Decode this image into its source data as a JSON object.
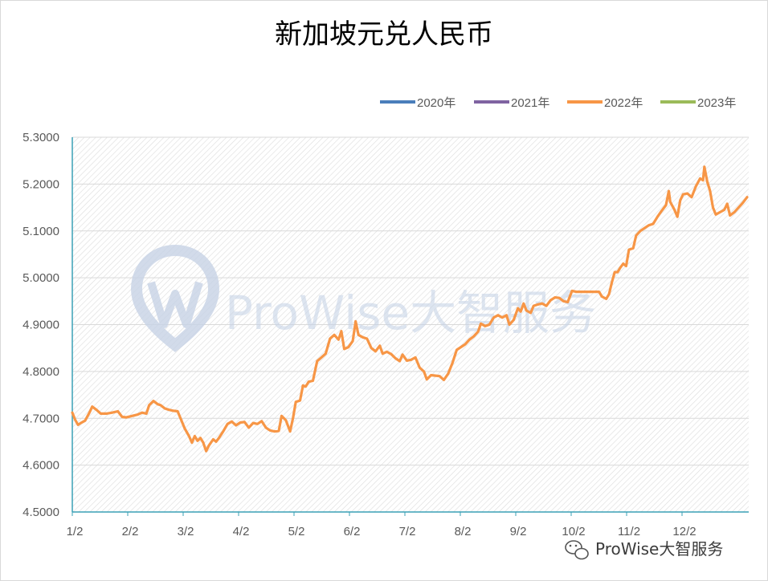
{
  "chart_data": {
    "type": "line",
    "title": "新加坡元兑人民币",
    "xlabel": "",
    "ylabel": "",
    "ylim": [
      4.5,
      5.3
    ],
    "yticks": [
      "4.5000",
      "4.6000",
      "4.7000",
      "4.8000",
      "4.9000",
      "5.0000",
      "5.1000",
      "5.2000",
      "5.3000"
    ],
    "ytick_values": [
      4.5,
      4.6,
      4.7,
      4.8,
      4.9,
      5.0,
      5.1,
      5.2,
      5.3
    ],
    "xticks": [
      "1/2",
      "2/2",
      "3/2",
      "4/2",
      "5/2",
      "6/2",
      "7/2",
      "8/2",
      "9/2",
      "10/2",
      "11/2",
      "12/2"
    ],
    "legend_position": "top-right",
    "grid": true,
    "series": [
      {
        "name": "2020年",
        "color": "#4a7ebb",
        "values": []
      },
      {
        "name": "2021年",
        "color": "#7f63a1",
        "values": []
      },
      {
        "name": "2022年",
        "color": "#f79646",
        "values": [
          [
            0.0,
            4.712
          ],
          [
            1.0,
            4.697
          ],
          [
            2.0,
            4.686
          ],
          [
            3.0,
            4.69
          ],
          [
            4.5,
            4.695
          ],
          [
            6.0,
            4.712
          ],
          [
            7.0,
            4.725
          ],
          [
            8.5,
            4.718
          ],
          [
            10.0,
            4.71
          ],
          [
            12.0,
            4.71
          ],
          [
            14.0,
            4.712
          ],
          [
            16.0,
            4.715
          ],
          [
            17.5,
            4.703
          ],
          [
            19.0,
            4.702
          ],
          [
            21.0,
            4.705
          ],
          [
            23.0,
            4.708
          ],
          [
            24.5,
            4.712
          ],
          [
            26.0,
            4.71
          ],
          [
            27.0,
            4.728
          ],
          [
            28.5,
            4.737
          ],
          [
            30.0,
            4.73
          ],
          [
            31.0,
            4.728
          ],
          [
            32.5,
            4.721
          ],
          [
            34.0,
            4.718
          ],
          [
            35.5,
            4.716
          ],
          [
            37.0,
            4.715
          ],
          [
            38.0,
            4.7
          ],
          [
            39.5,
            4.678
          ],
          [
            41.0,
            4.662
          ],
          [
            42.0,
            4.648
          ],
          [
            43.0,
            4.662
          ],
          [
            44.0,
            4.652
          ],
          [
            45.0,
            4.658
          ],
          [
            46.0,
            4.648
          ],
          [
            47.0,
            4.63
          ],
          [
            48.0,
            4.642
          ],
          [
            49.5,
            4.655
          ],
          [
            50.5,
            4.65
          ],
          [
            51.5,
            4.658
          ],
          [
            53.0,
            4.672
          ],
          [
            54.5,
            4.688
          ],
          [
            56.0,
            4.693
          ],
          [
            57.5,
            4.685
          ],
          [
            59.0,
            4.691
          ],
          [
            60.5,
            4.692
          ],
          [
            62.0,
            4.68
          ],
          [
            63.5,
            4.69
          ],
          [
            65.0,
            4.688
          ],
          [
            66.5,
            4.694
          ],
          [
            68.0,
            4.68
          ],
          [
            69.5,
            4.674
          ],
          [
            71.0,
            4.672
          ],
          [
            72.5,
            4.673
          ],
          [
            73.5,
            4.705
          ],
          [
            75.0,
            4.696
          ],
          [
            76.5,
            4.672
          ],
          [
            77.5,
            4.7
          ],
          [
            78.5,
            4.735
          ],
          [
            80.0,
            4.738
          ],
          [
            81.0,
            4.77
          ],
          [
            82.0,
            4.768
          ],
          [
            83.0,
            4.778
          ],
          [
            84.5,
            4.78
          ],
          [
            86.0,
            4.822
          ],
          [
            87.5,
            4.83
          ],
          [
            89.0,
            4.838
          ],
          [
            90.5,
            4.87
          ],
          [
            92.0,
            4.878
          ],
          [
            93.5,
            4.868
          ],
          [
            94.5,
            4.886
          ],
          [
            95.5,
            4.848
          ],
          [
            97.0,
            4.852
          ],
          [
            98.5,
            4.865
          ],
          [
            99.5,
            4.907
          ],
          [
            100.5,
            4.878
          ],
          [
            102.0,
            4.873
          ],
          [
            103.5,
            4.87
          ],
          [
            105.0,
            4.85
          ],
          [
            106.5,
            4.843
          ],
          [
            108.0,
            4.855
          ],
          [
            109.0,
            4.838
          ],
          [
            110.5,
            4.842
          ],
          [
            112.0,
            4.837
          ],
          [
            113.5,
            4.828
          ],
          [
            115.0,
            4.822
          ],
          [
            116.0,
            4.836
          ],
          [
            117.5,
            4.823
          ],
          [
            119.0,
            4.825
          ],
          [
            120.5,
            4.83
          ],
          [
            122.0,
            4.808
          ],
          [
            123.5,
            4.8
          ],
          [
            124.5,
            4.783
          ],
          [
            126.0,
            4.792
          ],
          [
            127.5,
            4.791
          ],
          [
            129.0,
            4.79
          ],
          [
            130.5,
            4.782
          ],
          [
            132.0,
            4.795
          ],
          [
            133.5,
            4.818
          ],
          [
            135.0,
            4.846
          ],
          [
            136.5,
            4.852
          ],
          [
            138.0,
            4.858
          ],
          [
            139.5,
            4.868
          ],
          [
            141.0,
            4.875
          ],
          [
            142.5,
            4.885
          ],
          [
            143.5,
            4.902
          ],
          [
            145.0,
            4.897
          ],
          [
            146.5,
            4.9
          ],
          [
            148.0,
            4.915
          ],
          [
            149.5,
            4.92
          ],
          [
            151.0,
            4.915
          ],
          [
            152.5,
            4.92
          ],
          [
            153.5,
            4.9
          ],
          [
            155.0,
            4.91
          ],
          [
            156.5,
            4.935
          ],
          [
            157.5,
            4.928
          ],
          [
            158.5,
            4.945
          ],
          [
            159.5,
            4.93
          ],
          [
            161.0,
            4.925
          ],
          [
            162.0,
            4.94
          ],
          [
            163.5,
            4.943
          ],
          [
            165.0,
            4.945
          ],
          [
            166.5,
            4.94
          ],
          [
            168.0,
            4.952
          ],
          [
            169.5,
            4.958
          ],
          [
            171.0,
            4.957
          ],
          [
            172.5,
            4.95
          ],
          [
            174.0,
            4.948
          ],
          [
            175.5,
            4.972
          ],
          [
            177.0,
            4.97
          ],
          [
            179.0,
            4.97
          ],
          [
            181.0,
            4.97
          ],
          [
            183.0,
            4.97
          ],
          [
            185.0,
            4.97
          ],
          [
            186.0,
            4.96
          ],
          [
            187.5,
            4.955
          ],
          [
            188.5,
            4.965
          ],
          [
            189.5,
            4.99
          ],
          [
            190.5,
            5.012
          ],
          [
            191.5,
            5.012
          ],
          [
            192.5,
            5.022
          ],
          [
            193.5,
            5.03
          ],
          [
            194.5,
            5.025
          ],
          [
            195.5,
            5.06
          ],
          [
            197.0,
            5.063
          ],
          [
            198.0,
            5.09
          ],
          [
            199.5,
            5.1
          ],
          [
            201.0,
            5.106
          ],
          [
            202.5,
            5.112
          ],
          [
            204.0,
            5.115
          ],
          [
            205.5,
            5.13
          ],
          [
            207.0,
            5.143
          ],
          [
            208.5,
            5.155
          ],
          [
            209.5,
            5.185
          ],
          [
            210.0,
            5.162
          ],
          [
            211.5,
            5.145
          ],
          [
            212.5,
            5.13
          ],
          [
            213.5,
            5.165
          ],
          [
            214.5,
            5.178
          ],
          [
            216.0,
            5.18
          ],
          [
            217.5,
            5.172
          ],
          [
            219.0,
            5.195
          ],
          [
            220.5,
            5.212
          ],
          [
            221.5,
            5.208
          ],
          [
            222.0,
            5.237
          ],
          [
            223.0,
            5.205
          ],
          [
            224.0,
            5.185
          ],
          [
            225.0,
            5.15
          ],
          [
            226.0,
            5.135
          ],
          [
            227.5,
            5.14
          ],
          [
            229.0,
            5.145
          ],
          [
            230.0,
            5.158
          ],
          [
            231.0,
            5.133
          ],
          [
            232.5,
            5.14
          ],
          [
            234.0,
            5.15
          ],
          [
            235.5,
            5.16
          ],
          [
            237.0,
            5.172
          ]
        ]
      },
      {
        "name": "2023年",
        "color": "#9bbb59",
        "values": []
      }
    ]
  },
  "watermark_text": "ProWise大智服务",
  "footer_text": "ProWise大智服务"
}
